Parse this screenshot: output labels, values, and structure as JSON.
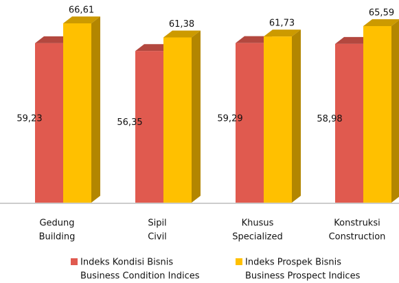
{
  "chart_data": {
    "type": "bar",
    "categories": [
      [
        "Gedung",
        "Building"
      ],
      [
        "Sipil",
        "Civil"
      ],
      [
        "Khusus",
        "Specialized"
      ],
      [
        "Konstruksi",
        "Construction"
      ]
    ],
    "series": [
      {
        "name": [
          "Indeks Kondisi Bisnis",
          "Business Condition Indices"
        ],
        "color": "#e05a4f",
        "values": [
          59.23,
          56.35,
          59.29,
          58.98
        ],
        "value_labels": [
          "59,23",
          "56,35",
          "59,29",
          "58,98"
        ]
      },
      {
        "name": [
          "Indeks Prospek Bisnis",
          "Business Prospect Indices"
        ],
        "color": "#ffc000",
        "values": [
          66.61,
          61.38,
          61.73,
          65.59
        ],
        "value_labels": [
          "66,61",
          "61,38",
          "61,73",
          "65,59"
        ]
      }
    ]
  }
}
